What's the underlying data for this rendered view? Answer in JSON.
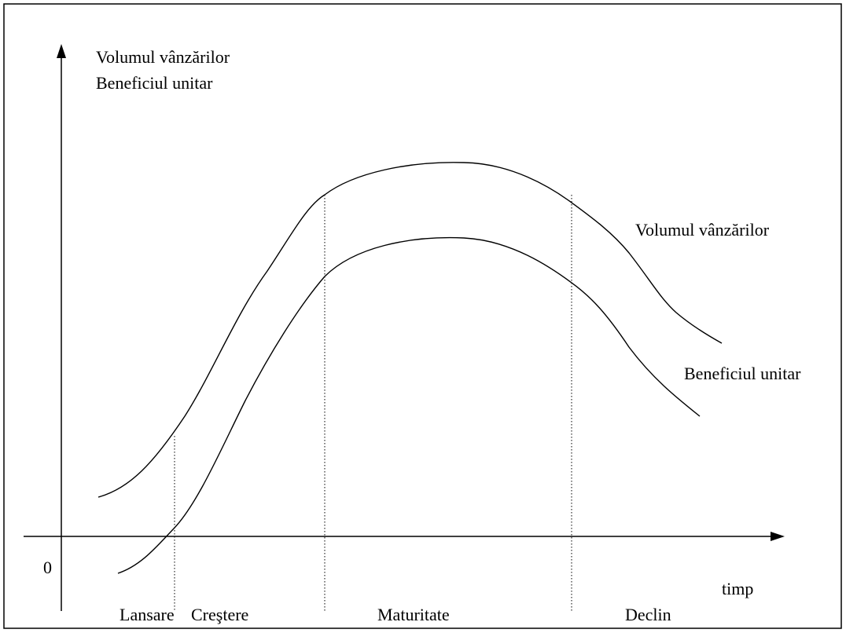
{
  "axis_labels": [
    "Volumul vânzărilor",
    "Beneficiul unitar"
  ],
  "curve_labels": {
    "sales": "Volumul vânzărilor",
    "profit": "Beneficiul unitar"
  },
  "origin": "0",
  "x_axis_label": "timp",
  "phases": [
    "Lansare",
    "Creştere",
    "Maturitate",
    "Declin"
  ]
}
